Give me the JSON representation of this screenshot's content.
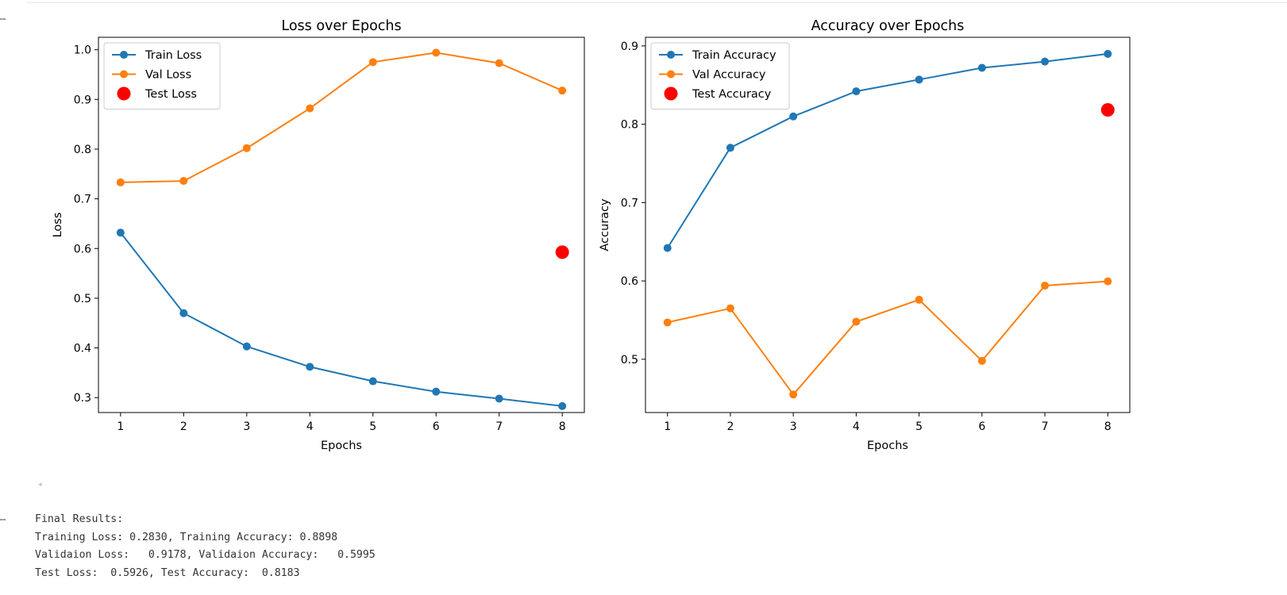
{
  "cell": {
    "output_prompt": "…",
    "scroll_arrow": "◂"
  },
  "chart_data": [
    {
      "type": "line",
      "title": "Loss over Epochs",
      "xlabel": "Epochs",
      "ylabel": "Loss",
      "x": [
        1,
        2,
        3,
        4,
        5,
        6,
        7,
        8
      ],
      "xlim": [
        0.65,
        8.35
      ],
      "ylim": [
        0.27,
        1.025
      ],
      "yticks": [
        0.3,
        0.4,
        0.5,
        0.6,
        0.7,
        0.8,
        0.9,
        1.0
      ],
      "ytick_labels": [
        "0.3",
        "0.4",
        "0.5",
        "0.6",
        "0.7",
        "0.8",
        "0.9",
        "1.0"
      ],
      "grid": false,
      "legend": "upper-left",
      "series": [
        {
          "name": "Train Loss",
          "color": "#1f77b4",
          "marker": "circle",
          "values": [
            0.632,
            0.47,
            0.403,
            0.362,
            0.333,
            0.312,
            0.298,
            0.283
          ]
        },
        {
          "name": "Val Loss",
          "color": "#ff7f0e",
          "marker": "circle",
          "values": [
            0.733,
            0.736,
            0.802,
            0.882,
            0.975,
            0.994,
            0.973,
            0.9178
          ]
        },
        {
          "name": "Test Loss",
          "color": "#ff0000",
          "marker": "big-circle",
          "points": [
            {
              "x": 8,
              "y": 0.5926
            }
          ]
        }
      ]
    },
    {
      "type": "line",
      "title": "Accuracy over Epochs",
      "xlabel": "Epochs",
      "ylabel": "Accuracy",
      "x": [
        1,
        2,
        3,
        4,
        5,
        6,
        7,
        8
      ],
      "xlim": [
        0.65,
        8.35
      ],
      "ylim": [
        0.432,
        0.911
      ],
      "yticks": [
        0.5,
        0.6,
        0.7,
        0.8,
        0.9
      ],
      "ytick_labels": [
        "0.5",
        "0.6",
        "0.7",
        "0.8",
        "0.9"
      ],
      "grid": false,
      "legend": "upper-left",
      "series": [
        {
          "name": "Train Accuracy",
          "color": "#1f77b4",
          "marker": "circle",
          "values": [
            0.642,
            0.77,
            0.81,
            0.842,
            0.857,
            0.872,
            0.88,
            0.8898
          ]
        },
        {
          "name": "Val Accuracy",
          "color": "#ff7f0e",
          "marker": "circle",
          "values": [
            0.547,
            0.565,
            0.455,
            0.548,
            0.576,
            0.498,
            0.594,
            0.5995
          ]
        },
        {
          "name": "Test Accuracy",
          "color": "#ff0000",
          "marker": "big-circle",
          "points": [
            {
              "x": 8,
              "y": 0.8183
            }
          ]
        }
      ]
    }
  ],
  "results": {
    "lines": [
      "Final Results:",
      "Training Loss: 0.2830, Training Accuracy: 0.8898",
      "Validaion Loss:   0.9178, Validaion Accuracy:   0.5995",
      "Test Loss:  0.5926, Test Accuracy:  0.8183"
    ]
  }
}
